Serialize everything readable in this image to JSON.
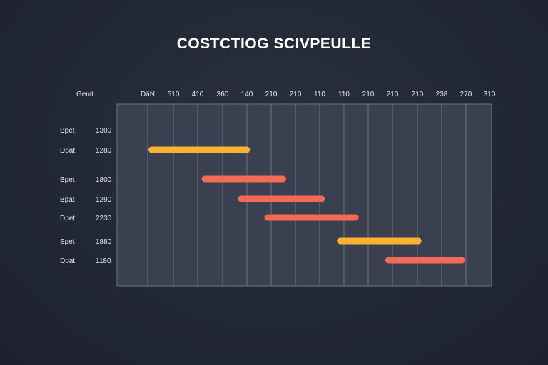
{
  "chart_data": {
    "type": "gantt",
    "title": "COSTCTIOG SCIVPEULLE",
    "corner_label": "Genit",
    "tick_labels": [
      "DäN",
      "510",
      "410",
      "360",
      "140",
      "210",
      "210",
      "110",
      "110",
      "210",
      "210",
      "210",
      "238",
      "270",
      "310"
    ],
    "rows": [
      {
        "label": "Bpet",
        "value": "1300",
        "start": null,
        "end": null,
        "color": null
      },
      {
        "label": "Dpat",
        "value": "1280",
        "start": 1.3,
        "end": 5.5,
        "color": "#f9b233"
      },
      {
        "label": "Bpet",
        "value": "1800",
        "start": 3.5,
        "end": 7.0,
        "color": "#f26a55"
      },
      {
        "label": "Bpat",
        "value": "1290",
        "start": 5.0,
        "end": 8.6,
        "color": "#f26a55"
      },
      {
        "label": "Dpet",
        "value": "2230",
        "start": 6.1,
        "end": 10.0,
        "color": "#f26a55"
      },
      {
        "label": "Spet",
        "value": "1880",
        "start": 9.1,
        "end": 12.6,
        "color": "#f9b233"
      },
      {
        "label": "Dpat",
        "value": "1180",
        "start": 11.1,
        "end": 14.4,
        "color": "#f26a55"
      }
    ],
    "x_range": [
      0,
      15.5
    ],
    "grid": true
  }
}
